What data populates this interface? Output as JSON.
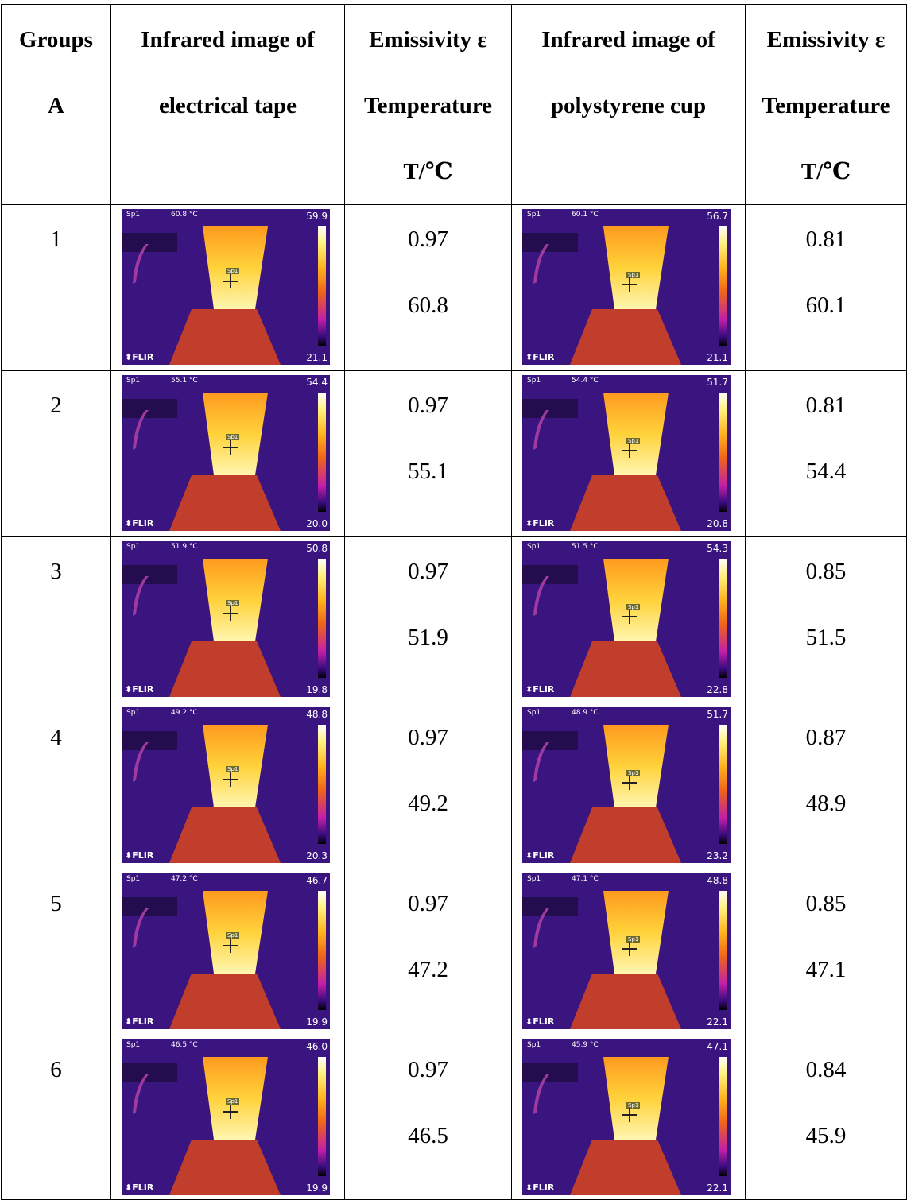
{
  "header": {
    "groups": [
      "Groups",
      "A"
    ],
    "tape_image": [
      "Infrared image of",
      "electrical tape"
    ],
    "tape_values": [
      "Emissivity ε",
      "Temperature",
      "T/℃"
    ],
    "cup_image": [
      "Infrared image of",
      "polystyrene cup"
    ],
    "cup_values": [
      "Emissivity ε",
      "Temperature",
      "T/℃"
    ]
  },
  "rows": [
    {
      "group": "1",
      "tape": {
        "emissivity": "0.97",
        "temperature": "60.8",
        "thermal": {
          "sp_label": "Sp1",
          "reading": "60.8 °C",
          "max": "59.9",
          "min": "21.1",
          "logo": "FLIR",
          "tag": "Sp1"
        }
      },
      "cup": {
        "emissivity": "0.81",
        "temperature": "60.1",
        "thermal": {
          "sp_label": "Sp1",
          "reading": "60.1 °C",
          "max": "56.7",
          "min": "21.1",
          "logo": "FLIR",
          "tag": "Sp1"
        }
      }
    },
    {
      "group": "2",
      "tape": {
        "emissivity": "0.97",
        "temperature": "55.1",
        "thermal": {
          "sp_label": "Sp1",
          "reading": "55.1 °C",
          "max": "54.4",
          "min": "20.0",
          "logo": "FLIR",
          "tag": "Sp1"
        }
      },
      "cup": {
        "emissivity": "0.81",
        "temperature": "54.4",
        "thermal": {
          "sp_label": "Sp1",
          "reading": "54.4 °C",
          "max": "51.7",
          "min": "20.8",
          "logo": "FLIR",
          "tag": "Sp1"
        }
      }
    },
    {
      "group": "3",
      "tape": {
        "emissivity": "0.97",
        "temperature": "51.9",
        "thermal": {
          "sp_label": "Sp1",
          "reading": "51.9 °C",
          "max": "50.8",
          "min": "19.8",
          "logo": "FLIR",
          "tag": "Sp1"
        }
      },
      "cup": {
        "emissivity": "0.85",
        "temperature": "51.5",
        "thermal": {
          "sp_label": "Sp1",
          "reading": "51.5 °C",
          "max": "54.3",
          "min": "22.8",
          "logo": "FLIR",
          "tag": "Sp1"
        }
      }
    },
    {
      "group": "4",
      "tape": {
        "emissivity": "0.97",
        "temperature": "49.2",
        "thermal": {
          "sp_label": "Sp1",
          "reading": "49.2 °C",
          "max": "48.8",
          "min": "20.3",
          "logo": "FLIR",
          "tag": "Sp1"
        }
      },
      "cup": {
        "emissivity": "0.87",
        "temperature": "48.9",
        "thermal": {
          "sp_label": "Sp1",
          "reading": "48.9 °C",
          "max": "51.7",
          "min": "23.2",
          "logo": "FLIR",
          "tag": "Sp1"
        }
      }
    },
    {
      "group": "5",
      "tape": {
        "emissivity": "0.97",
        "temperature": "47.2",
        "thermal": {
          "sp_label": "Sp1",
          "reading": "47.2 °C",
          "max": "46.7",
          "min": "19.9",
          "logo": "FLIR",
          "tag": "Sp1"
        }
      },
      "cup": {
        "emissivity": "0.85",
        "temperature": "47.1",
        "thermal": {
          "sp_label": "Sp1",
          "reading": "47.1 °C",
          "max": "48.8",
          "min": "22.1",
          "logo": "FLIR",
          "tag": "Sp1"
        }
      }
    },
    {
      "group": "6",
      "tape": {
        "emissivity": "0.97",
        "temperature": "46.5",
        "thermal": {
          "sp_label": "Sp1",
          "reading": "46.5 °C",
          "max": "46.0",
          "min": "19.9",
          "logo": "FLIR",
          "tag": "Sp1"
        }
      },
      "cup": {
        "emissivity": "0.84",
        "temperature": "45.9",
        "thermal": {
          "sp_label": "Sp1",
          "reading": "45.9 °C",
          "max": "47.1",
          "min": "22.1",
          "logo": "FLIR",
          "tag": "Sp1"
        }
      }
    }
  ]
}
